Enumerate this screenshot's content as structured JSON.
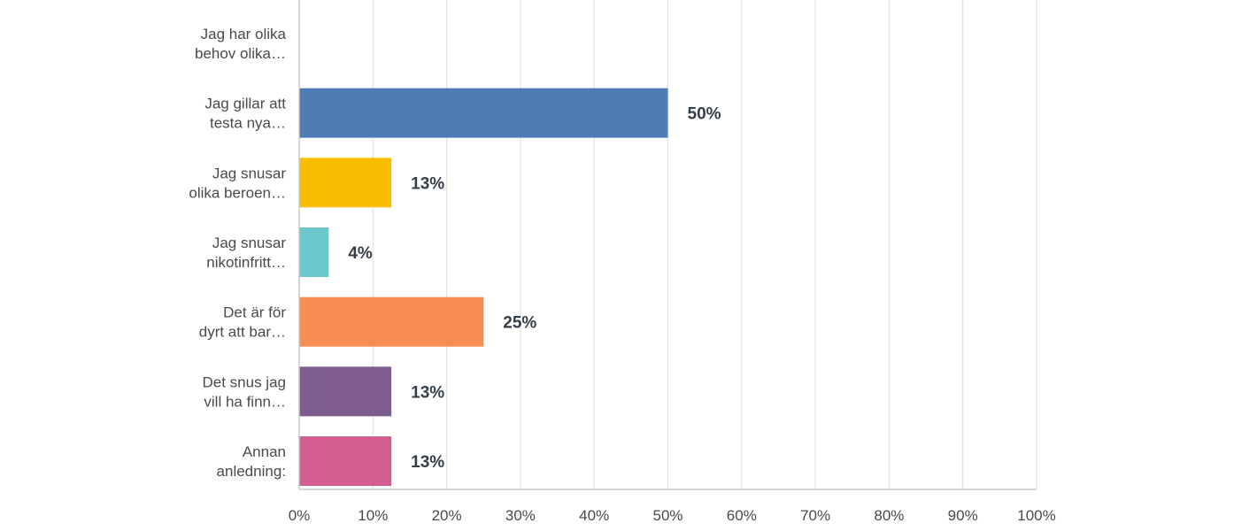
{
  "chart_data": {
    "type": "bar",
    "orientation": "horizontal",
    "categories": [
      [
        "Jag har olika",
        "behov olika…"
      ],
      [
        "Jag gillar att",
        "testa nya…"
      ],
      [
        "Jag snusar",
        "olika beroen…"
      ],
      [
        "Jag snusar",
        "nikotinfritt…"
      ],
      [
        "Det är för",
        "dyrt att bar…"
      ],
      [
        "Det snus jag",
        "vill ha finn…"
      ],
      [
        "Annan",
        "anledning:"
      ]
    ],
    "values": [
      0,
      50,
      12.5,
      4,
      25,
      12.5,
      12.5
    ],
    "data_labels": [
      "",
      "50%",
      "13%",
      "4%",
      "25%",
      "13%",
      "13%"
    ],
    "colors": [
      "#2dccd3",
      "#507cb6",
      "#f9be00",
      "#6bc8cd",
      "#f68d51",
      "#7d5d8f",
      "#d25f90"
    ],
    "xlim": [
      0,
      100
    ],
    "x_ticks": [
      0,
      10,
      20,
      30,
      40,
      50,
      60,
      70,
      80,
      90,
      100
    ],
    "x_tick_labels": [
      "0%",
      "10%",
      "20%",
      "30%",
      "40%",
      "50%",
      "60%",
      "70%",
      "80%",
      "90%",
      "100%"
    ],
    "grid": true,
    "legend": "none",
    "title": "",
    "xlabel": "",
    "ylabel": ""
  }
}
